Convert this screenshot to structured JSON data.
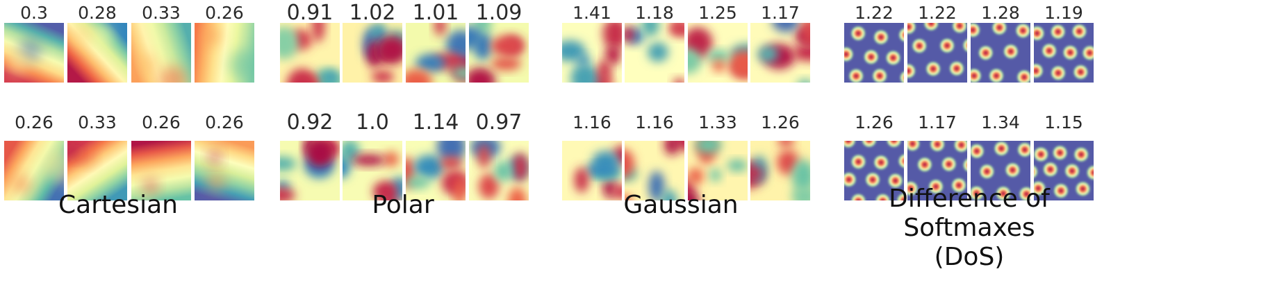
{
  "panels": [
    {
      "caption_lines": [
        "Cartesian"
      ],
      "style": "smooth",
      "rows": [
        {
          "scores": [
            "0.3",
            "0.28",
            "0.33",
            "0.26"
          ]
        },
        {
          "scores": [
            "0.26",
            "0.33",
            "0.26",
            "0.26"
          ]
        }
      ]
    },
    {
      "caption_lines": [
        "Polar"
      ],
      "style": "blobs",
      "rows": [
        {
          "scores": [
            "0.91",
            "1.02",
            "1.01",
            "1.09"
          ]
        },
        {
          "scores": [
            "0.92",
            "1.0",
            "1.14",
            "0.97"
          ]
        }
      ]
    },
    {
      "caption_lines": [
        "Gaussian"
      ],
      "style": "blobs",
      "rows": [
        {
          "scores": [
            "1.41",
            "1.18",
            "1.25",
            "1.17"
          ]
        },
        {
          "scores": [
            "1.16",
            "1.16",
            "1.33",
            "1.26"
          ]
        }
      ]
    },
    {
      "caption_lines": [
        "Difference of Softmaxes",
        "(DoS)"
      ],
      "style": "grid",
      "rows": [
        {
          "scores": [
            "1.22",
            "1.22",
            "1.28",
            "1.19"
          ]
        },
        {
          "scores": [
            "1.26",
            "1.17",
            "1.34",
            "1.15"
          ]
        }
      ]
    }
  ],
  "colormap": "Spectral_r"
}
